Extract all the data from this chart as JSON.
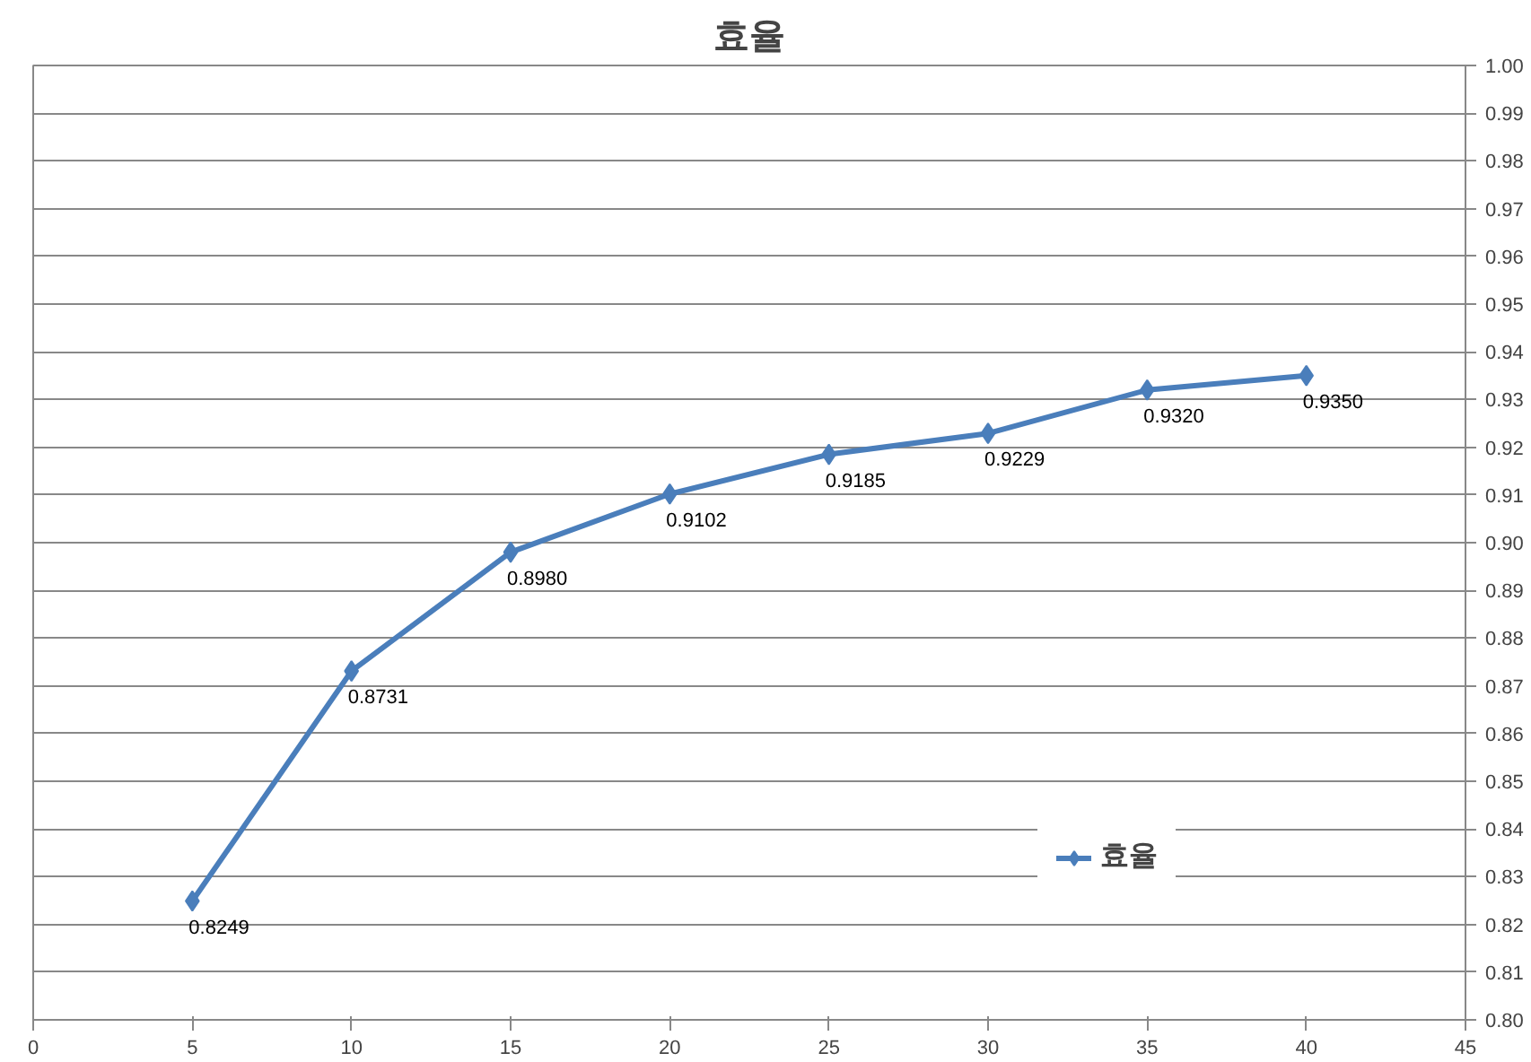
{
  "chart_data": {
    "type": "line",
    "title": "효율",
    "x": [
      5,
      10,
      15,
      20,
      25,
      30,
      35,
      40
    ],
    "series": [
      {
        "name": "효율",
        "color": "#4a7ebb",
        "values": [
          0.8249,
          0.8731,
          0.898,
          0.9102,
          0.9185,
          0.9229,
          0.932,
          0.935
        ],
        "value_labels": [
          "0.8249",
          "0.8731",
          "0.8980",
          "0.9102",
          "0.9185",
          "0.9229",
          "0.9320",
          "0.9350"
        ]
      }
    ],
    "xlim": [
      0,
      45
    ],
    "xticks": [
      0,
      5,
      10,
      15,
      20,
      25,
      30,
      35,
      40,
      45
    ],
    "ylim": [
      0.8,
      1.0
    ],
    "yticks": [
      {
        "value": 0.8,
        "label": "0.80"
      },
      {
        "value": 0.81,
        "label": "0.81"
      },
      {
        "value": 0.82,
        "label": "0.82"
      },
      {
        "value": 0.83,
        "label": "0.83"
      },
      {
        "value": 0.84,
        "label": "0.84"
      },
      {
        "value": 0.85,
        "label": "0.85"
      },
      {
        "value": 0.86,
        "label": "0.86"
      },
      {
        "value": 0.87,
        "label": "0.87"
      },
      {
        "value": 0.88,
        "label": "0.88"
      },
      {
        "value": 0.89,
        "label": "0.89"
      },
      {
        "value": 0.9,
        "label": "0.90"
      },
      {
        "value": 0.91,
        "label": "0.91"
      },
      {
        "value": 0.92,
        "label": "0.92"
      },
      {
        "value": 0.93,
        "label": "0.93"
      },
      {
        "value": 0.94,
        "label": "0.94"
      },
      {
        "value": 0.95,
        "label": "0.95"
      },
      {
        "value": 0.96,
        "label": "0.96"
      },
      {
        "value": 0.97,
        "label": "0.97"
      },
      {
        "value": 0.98,
        "label": "0.98"
      },
      {
        "value": 0.99,
        "label": "0.99"
      },
      {
        "value": 1.0,
        "label": "1.00"
      }
    ],
    "grid": "y",
    "legend": "bottom right",
    "marker": "diamond",
    "line_style": "solid"
  }
}
